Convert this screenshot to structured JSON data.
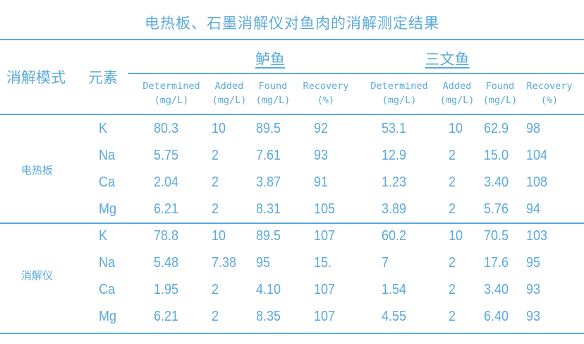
{
  "title": "电热板、石墨消解仪对鱼肉的消解测定结果",
  "header": {
    "mode": "消解模式",
    "element": "元素",
    "fish": [
      "鲈鱼",
      "三文鱼"
    ],
    "subcolumns": [
      {
        "name": "Determined",
        "unit": "(mg/L)"
      },
      {
        "name": "Added",
        "unit": "(mg/L)"
      },
      {
        "name": "Found",
        "unit": "(mg/L)"
      },
      {
        "name": "Recovery",
        "unit": "(%)"
      }
    ]
  },
  "groups": [
    {
      "label": "电热板",
      "rows": [
        [
          "K",
          "80.3",
          "10",
          "89.5",
          "92",
          "53.1",
          "10",
          "62.9",
          "98"
        ],
        [
          "Na",
          "5.75",
          "2",
          "7.61",
          "93",
          "12.9",
          "2",
          "15.0",
          "104"
        ],
        [
          "Ca",
          "2.04",
          "2",
          "3.87",
          "91",
          "1.23",
          "2",
          "3.40",
          "108"
        ],
        [
          "Mg",
          "6.21",
          "2",
          "8.31",
          "105",
          "3.89",
          "2",
          "5.76",
          "94"
        ]
      ]
    },
    {
      "label": "消解仪",
      "rows": [
        [
          "K",
          "78.8",
          "10",
          "89.5",
          "107",
          "60.2",
          "10",
          "70.5",
          "103"
        ],
        [
          "Na",
          "5.48",
          "7.38",
          "95",
          "15.",
          "7",
          "2",
          "17.6",
          "95"
        ],
        [
          "Ca",
          "1.95",
          "2",
          "4.10",
          "107",
          "1.54",
          "2",
          "3.40",
          "93"
        ],
        [
          "Mg",
          "6.21",
          "2",
          "8.35",
          "107",
          "4.55",
          "2",
          "6.40",
          "93"
        ]
      ]
    }
  ]
}
